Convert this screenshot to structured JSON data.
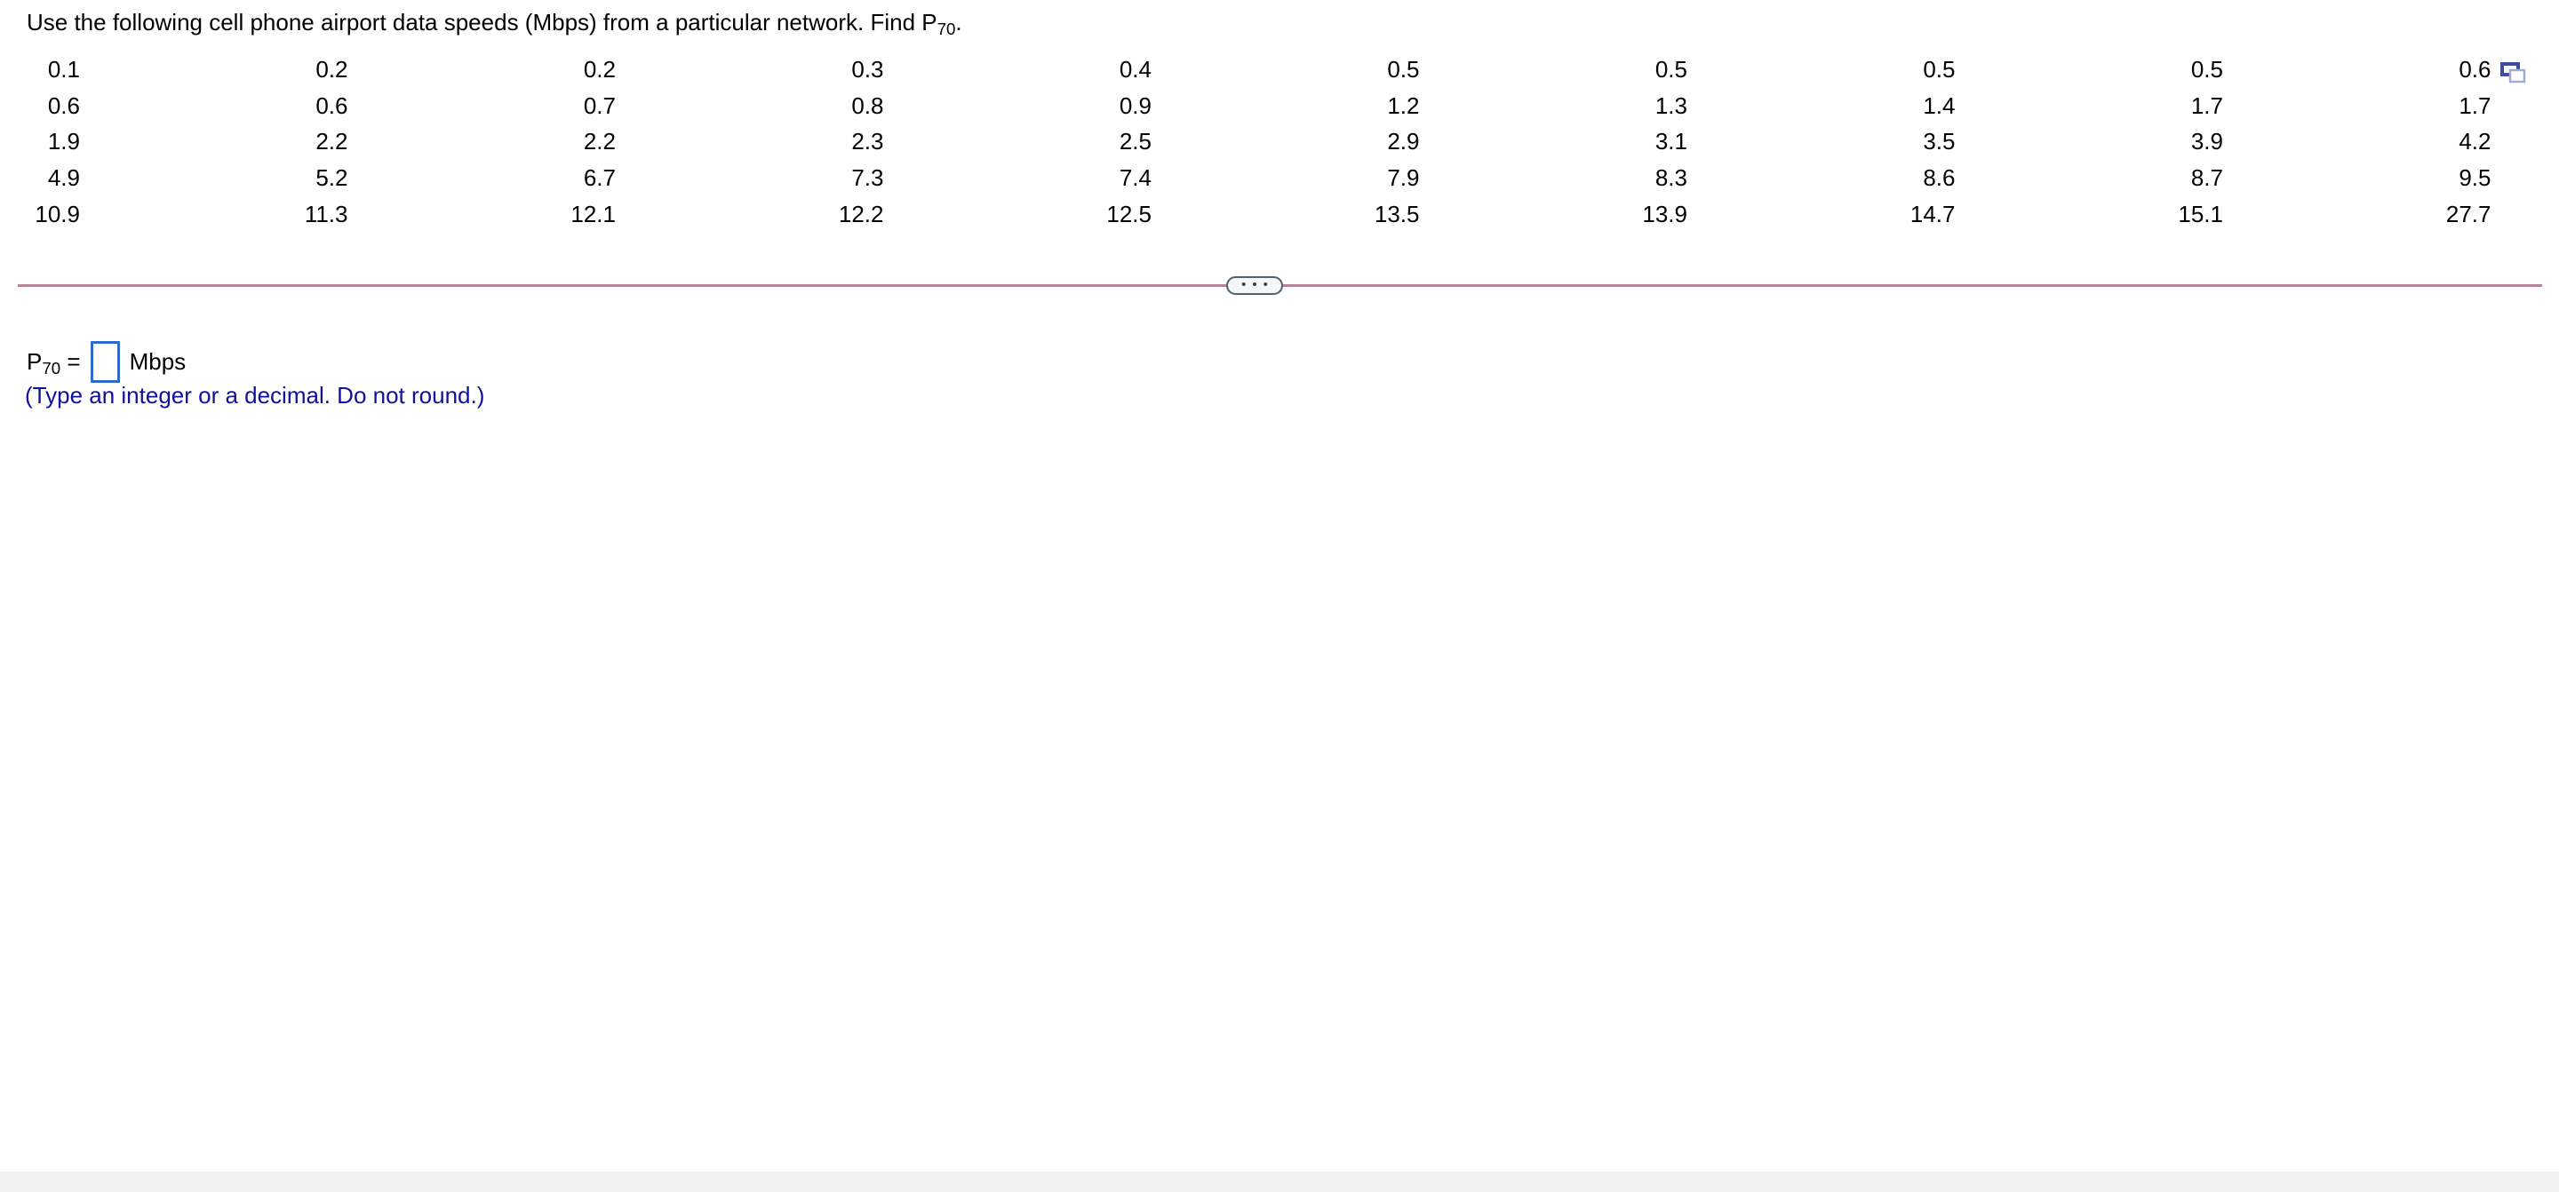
{
  "title": {
    "text_before_sub": "Use the following cell phone airport data speeds (Mbps) from a particular network. Find P",
    "sub": "70",
    "text_after_sub": "."
  },
  "data_table": {
    "rows": [
      [
        "0.1",
        "0.2",
        "0.2",
        "0.3",
        "0.4",
        "0.5",
        "0.5",
        "0.5",
        "0.5",
        "0.6"
      ],
      [
        "0.6",
        "0.6",
        "0.7",
        "0.8",
        "0.9",
        "1.2",
        "1.3",
        "1.4",
        "1.7",
        "1.7"
      ],
      [
        "1.9",
        "2.2",
        "2.2",
        "2.3",
        "2.5",
        "2.9",
        "3.1",
        "3.5",
        "3.9",
        "4.2"
      ],
      [
        "4.9",
        "5.2",
        "6.7",
        "7.3",
        "7.4",
        "7.9",
        "8.3",
        "8.6",
        "8.7",
        "9.5"
      ],
      [
        "10.9",
        "11.3",
        "12.1",
        "12.2",
        "12.5",
        "13.5",
        "13.9",
        "14.7",
        "15.1",
        "27.7"
      ]
    ]
  },
  "icons": {
    "copy_data": "copy-data-icon",
    "ellipsis": "ellipsis-expander"
  },
  "divider": {
    "ellipsis_dots": "•••"
  },
  "answer": {
    "p": "P",
    "p_sub": "70",
    "equals": " = ",
    "input_value": "",
    "unit": "Mbps",
    "hint": "(Type an integer or a decimal. Do not round.)"
  },
  "colors": {
    "hint_blue": "#10109e",
    "input_border_blue": "#2d6bcf",
    "divider_rose": "#b2859a",
    "pill_border_slate": "#51606f",
    "icon_dark_blue": "#3c4da0",
    "icon_light_blue": "#a2abd5",
    "bottom_bar_gray": "#f1f1f1"
  }
}
